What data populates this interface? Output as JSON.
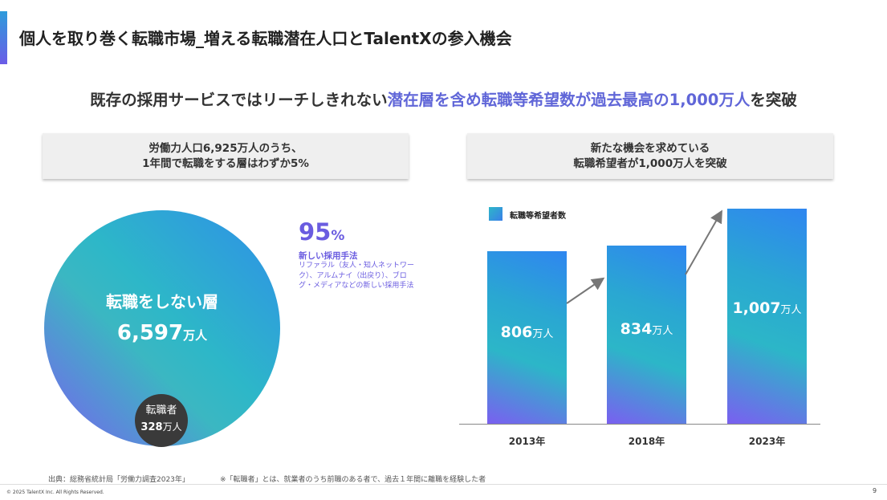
{
  "page": {
    "title": "個人を取り巻く転職市場_増える転職潜在人口とTalentXの参入機会",
    "headline_pre": "既存の採用サービスではリーチしきれない",
    "headline_highlight": "潜在層を含め転職等希望数が過去最高の1,000万人",
    "headline_post": "を突破"
  },
  "left_panel": {
    "header_line1": "労働力人口6,925万人のうち、",
    "header_line2": "1年間で転職をする層はわずか5%",
    "big_circle_label": "転職をしない層",
    "big_circle_value": "6,597",
    "big_circle_unit": "万人",
    "small_circle_label": "転職者",
    "small_circle_value": "328",
    "small_circle_unit": "万人",
    "pct_value": "95",
    "pct_unit": "%",
    "pct_title": "新しい採用手法",
    "pct_desc": "リファラル（友人・知人ネットワーク）、アルムナイ（出戻り）、ブログ・メディアなどの新しい採用手法"
  },
  "right_panel": {
    "header_line1": "新たな機会を求めている",
    "header_line2": "転職希望者が1,000万人を突破"
  },
  "chart_data": {
    "type": "bar",
    "categories": [
      "2013年",
      "2018年",
      "2023年"
    ],
    "series": [
      {
        "name": "転職等希望者数",
        "values": [
          806,
          834,
          1007
        ]
      }
    ],
    "value_labels": [
      "806",
      "834",
      "1,007"
    ],
    "unit": "万人",
    "colors": {
      "bar_start": "#7a5ff0",
      "bar_mid": "#2cb6c8",
      "bar_end": "#2f86f0"
    }
  },
  "footer": {
    "source": "出典：総務省統計局「労働力調査2023年」",
    "note": "※「転職者」とは、就業者のうち前職のある者で、過去１年間に離職を経験した者",
    "copyright": "© 2025 TalentX Inc. All Rights Reserved.",
    "page_number": "9"
  },
  "colors": {
    "accent": "#6066d8",
    "text": "#333333",
    "panel_bg": "#efefef"
  }
}
